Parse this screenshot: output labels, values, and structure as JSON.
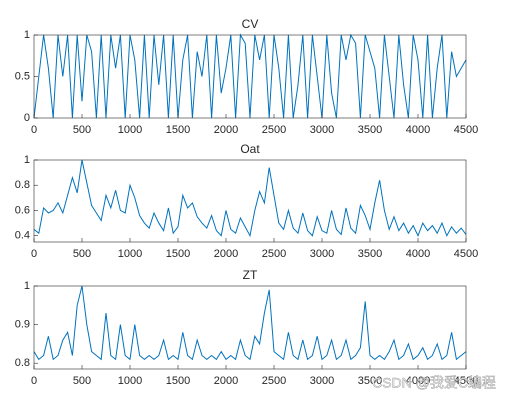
{
  "chart_data": [
    {
      "type": "line",
      "title": "CV",
      "color": "#0072bd",
      "x": [
        0,
        50,
        100,
        150,
        200,
        250,
        300,
        350,
        400,
        450,
        500,
        550,
        600,
        650,
        700,
        750,
        800,
        850,
        900,
        950,
        1000,
        1050,
        1100,
        1150,
        1200,
        1250,
        1300,
        1350,
        1400,
        1450,
        1500,
        1550,
        1600,
        1650,
        1700,
        1750,
        1800,
        1850,
        1900,
        1950,
        2000,
        2050,
        2100,
        2150,
        2200,
        2250,
        2300,
        2350,
        2400,
        2450,
        2500,
        2550,
        2600,
        2650,
        2700,
        2750,
        2800,
        2850,
        2900,
        2950,
        3000,
        3050,
        3100,
        3150,
        3200,
        3250,
        3300,
        3350,
        3400,
        3450,
        3500,
        3550,
        3600,
        3650,
        3700,
        3750,
        3800,
        3850,
        3900,
        3950,
        4000,
        4050,
        4100,
        4150,
        4200,
        4250,
        4300,
        4350,
        4400,
        4450,
        4500
      ],
      "values": [
        0,
        0.5,
        1,
        0.6,
        0,
        1,
        0.5,
        1,
        0,
        1,
        0.2,
        1,
        0.8,
        0,
        1,
        0,
        1,
        0.6,
        1,
        0,
        1,
        0.7,
        0,
        1,
        0,
        1,
        0.4,
        1,
        0,
        1,
        0,
        0.7,
        1,
        0,
        0.8,
        0.5,
        1,
        0,
        1,
        0.3,
        0.6,
        1,
        0,
        1,
        0.9,
        0,
        1,
        0.7,
        1,
        0,
        1,
        0.6,
        0,
        1,
        0,
        0.4,
        1,
        0,
        1,
        0.5,
        0,
        1,
        0.3,
        0,
        1,
        0.7,
        1,
        0.9,
        0,
        1,
        0.8,
        0.6,
        0,
        1,
        0.5,
        0,
        1,
        0.4,
        0,
        1,
        0.7,
        0,
        1,
        0,
        0.6,
        1,
        0,
        0.8,
        0.5,
        0.6,
        0.7
      ],
      "xlim": [
        0,
        4500
      ],
      "xticks": [
        0,
        500,
        1000,
        1500,
        2000,
        2500,
        3000,
        3500,
        4000,
        4500
      ],
      "ylim": [
        0,
        1
      ],
      "yticks": [
        0,
        0.5,
        1
      ]
    },
    {
      "type": "line",
      "title": "Oat",
      "color": "#0072bd",
      "x": [
        0,
        50,
        100,
        150,
        200,
        250,
        300,
        350,
        400,
        450,
        500,
        550,
        600,
        650,
        700,
        750,
        800,
        850,
        900,
        950,
        1000,
        1050,
        1100,
        1150,
        1200,
        1250,
        1300,
        1350,
        1400,
        1450,
        1500,
        1550,
        1600,
        1650,
        1700,
        1750,
        1800,
        1850,
        1900,
        1950,
        2000,
        2050,
        2100,
        2150,
        2200,
        2250,
        2300,
        2350,
        2400,
        2450,
        2500,
        2550,
        2600,
        2650,
        2700,
        2750,
        2800,
        2850,
        2900,
        2950,
        3000,
        3050,
        3100,
        3150,
        3200,
        3250,
        3300,
        3350,
        3400,
        3450,
        3500,
        3550,
        3600,
        3650,
        3700,
        3750,
        3800,
        3850,
        3900,
        3950,
        4000,
        4050,
        4100,
        4150,
        4200,
        4250,
        4300,
        4350,
        4400,
        4450,
        4500
      ],
      "values": [
        0.45,
        0.42,
        0.62,
        0.58,
        0.6,
        0.66,
        0.58,
        0.72,
        0.86,
        0.74,
        1.0,
        0.82,
        0.64,
        0.58,
        0.52,
        0.72,
        0.62,
        0.76,
        0.6,
        0.58,
        0.8,
        0.7,
        0.56,
        0.5,
        0.46,
        0.58,
        0.5,
        0.44,
        0.62,
        0.42,
        0.47,
        0.72,
        0.62,
        0.66,
        0.55,
        0.5,
        0.46,
        0.56,
        0.44,
        0.4,
        0.6,
        0.45,
        0.42,
        0.54,
        0.47,
        0.4,
        0.6,
        0.75,
        0.66,
        0.94,
        0.72,
        0.5,
        0.45,
        0.6,
        0.46,
        0.42,
        0.58,
        0.44,
        0.4,
        0.55,
        0.44,
        0.42,
        0.6,
        0.45,
        0.41,
        0.62,
        0.46,
        0.42,
        0.64,
        0.56,
        0.45,
        0.66,
        0.84,
        0.6,
        0.45,
        0.55,
        0.44,
        0.5,
        0.42,
        0.48,
        0.4,
        0.5,
        0.44,
        0.48,
        0.42,
        0.5,
        0.4,
        0.47,
        0.42,
        0.46,
        0.41
      ],
      "xlim": [
        0,
        4500
      ],
      "xticks": [
        0,
        500,
        1000,
        1500,
        2000,
        2500,
        3000,
        3500,
        4000,
        4500
      ],
      "ylim": [
        0.35,
        1
      ],
      "yticks": [
        0.4,
        0.6,
        0.8,
        1
      ]
    },
    {
      "type": "line",
      "title": "ZT",
      "color": "#0072bd",
      "x": [
        0,
        50,
        100,
        150,
        200,
        250,
        300,
        350,
        400,
        450,
        500,
        550,
        600,
        650,
        700,
        750,
        800,
        850,
        900,
        950,
        1000,
        1050,
        1100,
        1150,
        1200,
        1250,
        1300,
        1350,
        1400,
        1450,
        1500,
        1550,
        1600,
        1650,
        1700,
        1750,
        1800,
        1850,
        1900,
        1950,
        2000,
        2050,
        2100,
        2150,
        2200,
        2250,
        2300,
        2350,
        2400,
        2450,
        2500,
        2550,
        2600,
        2650,
        2700,
        2750,
        2800,
        2850,
        2900,
        2950,
        3000,
        3050,
        3100,
        3150,
        3200,
        3250,
        3300,
        3350,
        3400,
        3450,
        3500,
        3550,
        3600,
        3650,
        3700,
        3750,
        3800,
        3850,
        3900,
        3950,
        4000,
        4050,
        4100,
        4150,
        4200,
        4250,
        4300,
        4350,
        4400,
        4450,
        4500
      ],
      "values": [
        0.83,
        0.81,
        0.82,
        0.87,
        0.81,
        0.82,
        0.86,
        0.88,
        0.82,
        0.95,
        1.0,
        0.9,
        0.83,
        0.82,
        0.81,
        0.93,
        0.82,
        0.81,
        0.9,
        0.82,
        0.81,
        0.9,
        0.82,
        0.81,
        0.82,
        0.81,
        0.82,
        0.86,
        0.81,
        0.82,
        0.81,
        0.88,
        0.82,
        0.81,
        0.86,
        0.82,
        0.81,
        0.82,
        0.81,
        0.83,
        0.81,
        0.82,
        0.81,
        0.86,
        0.82,
        0.81,
        0.87,
        0.85,
        0.93,
        0.99,
        0.83,
        0.82,
        0.81,
        0.88,
        0.82,
        0.81,
        0.86,
        0.81,
        0.82,
        0.87,
        0.81,
        0.82,
        0.86,
        0.81,
        0.82,
        0.86,
        0.81,
        0.82,
        0.84,
        0.96,
        0.82,
        0.81,
        0.82,
        0.81,
        0.83,
        0.86,
        0.81,
        0.82,
        0.85,
        0.81,
        0.82,
        0.84,
        0.81,
        0.82,
        0.85,
        0.81,
        0.82,
        0.88,
        0.81,
        0.82,
        0.83
      ],
      "xlim": [
        0,
        4500
      ],
      "xticks": [
        0,
        500,
        1000,
        1500,
        2000,
        2500,
        3000,
        3500,
        4000,
        4500
      ],
      "ylim": [
        0.785,
        1
      ],
      "yticks": [
        0.8,
        0.9,
        1
      ]
    }
  ],
  "watermark": "CSDN @我爱C编程"
}
